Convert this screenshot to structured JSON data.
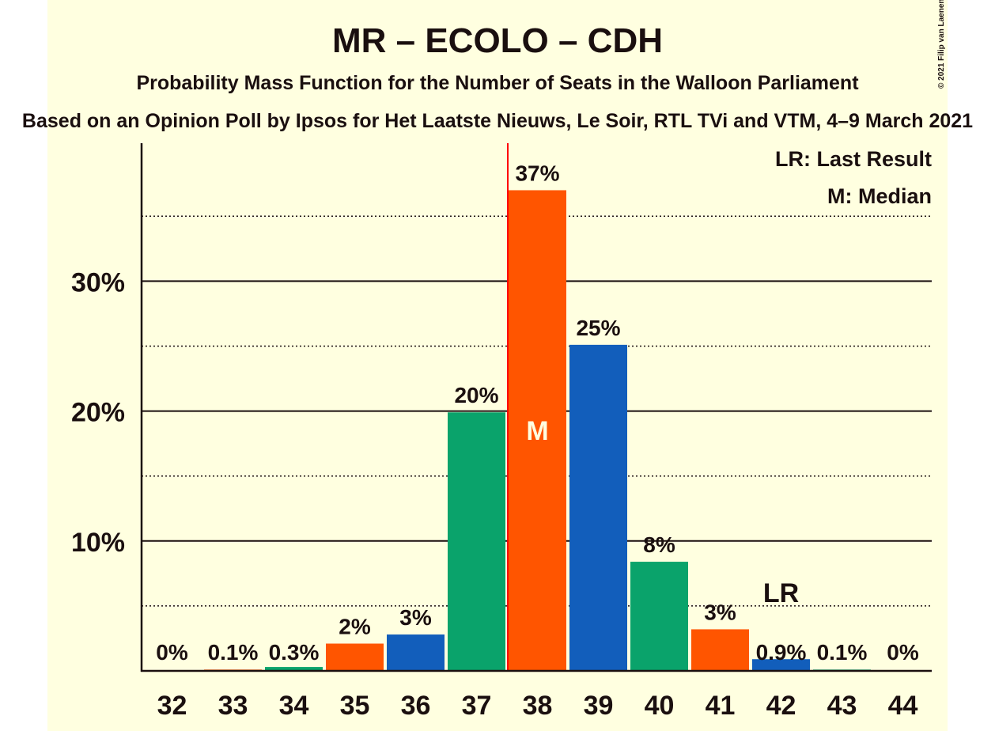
{
  "copyright": "© 2021 Filip van Laenen",
  "chart_data": {
    "type": "bar",
    "title": "MR – ECOLO – CDH",
    "subtitle": "Probability Mass Function for the Number of Seats in the Walloon Parliament",
    "subtitle2": "Based on an Opinion Poll by Ipsos for Het Laatste Nieuws, Le Soir, RTL TVi and VTM, 4–9 March 2021",
    "categories": [
      "32",
      "33",
      "34",
      "35",
      "36",
      "37",
      "38",
      "39",
      "40",
      "41",
      "42",
      "43",
      "44"
    ],
    "values": [
      0,
      0.1,
      0.3,
      2.1,
      2.8,
      19.9,
      37.0,
      25.1,
      8.4,
      3.2,
      0.9,
      0.1,
      0
    ],
    "value_labels": [
      "0%",
      "0.1%",
      "0.3%",
      "2%",
      "3%",
      "20%",
      "37%",
      "25%",
      "8%",
      "3%",
      "0.9%",
      "0.1%",
      "0%"
    ],
    "colors": [
      "#0AA36B",
      "#FF5500",
      "#0AA36B",
      "#FF5500",
      "#125EBB",
      "#0AA36B",
      "#FF5500",
      "#125EBB",
      "#0AA36B",
      "#FF5500",
      "#125EBB",
      "#0AA36B",
      "#FF5500"
    ],
    "yticks": [
      10,
      20,
      30
    ],
    "ytick_labels": [
      "10%",
      "20%",
      "30%"
    ],
    "ylim": [
      0,
      40
    ],
    "grid": true,
    "median_seat": "38",
    "median_marker": "M",
    "last_result_seat": "42",
    "last_result_marker": "LR",
    "legend": [
      "LR: Last Result",
      "M: Median"
    ],
    "legend_position": "top-right"
  }
}
